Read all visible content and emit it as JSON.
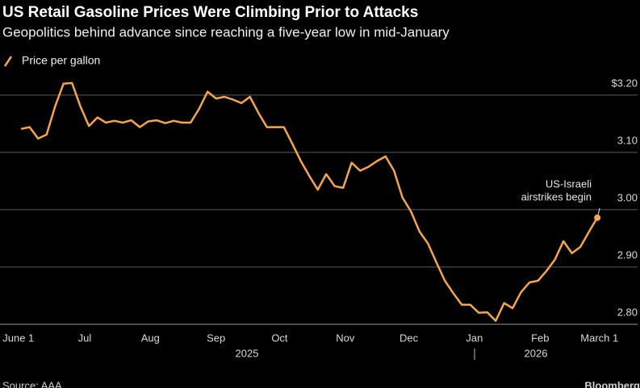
{
  "chart_data": {
    "type": "line",
    "title": "US Retail Gasoline Prices Were Climbing Prior to Attacks",
    "subtitle": "Geopolitics behind advance since reaching a five-year low in mid-January",
    "source": "Source: AAA",
    "brand": "Bloomberg",
    "annotation": [
      "US-Israeli",
      "airstrikes begin"
    ],
    "year_labels": [
      "2025",
      "2026"
    ],
    "x": [
      "2025-06-01",
      "2025-06-05",
      "2025-06-09",
      "2025-06-13",
      "2025-06-17",
      "2025-06-21",
      "2025-06-25",
      "2025-06-29",
      "2025-07-03",
      "2025-07-07",
      "2025-07-11",
      "2025-07-15",
      "2025-07-19",
      "2025-07-23",
      "2025-07-27",
      "2025-07-31",
      "2025-08-04",
      "2025-08-08",
      "2025-08-12",
      "2025-08-16",
      "2025-08-20",
      "2025-08-24",
      "2025-08-28",
      "2025-09-01",
      "2025-09-05",
      "2025-09-09",
      "2025-09-13",
      "2025-09-17",
      "2025-09-21",
      "2025-09-25",
      "2025-09-29",
      "2025-10-03",
      "2025-10-07",
      "2025-10-11",
      "2025-10-15",
      "2025-10-19",
      "2025-10-23",
      "2025-10-27",
      "2025-10-31",
      "2025-11-04",
      "2025-11-08",
      "2025-11-12",
      "2025-11-16",
      "2025-11-20",
      "2025-11-24",
      "2025-11-28",
      "2025-12-02",
      "2025-12-06",
      "2025-12-10",
      "2025-12-14",
      "2025-12-18",
      "2025-12-22",
      "2025-12-26",
      "2025-12-30",
      "2026-01-03",
      "2026-01-07",
      "2026-01-11",
      "2026-01-15",
      "2026-01-19",
      "2026-01-23",
      "2026-01-27",
      "2026-01-31",
      "2026-02-04",
      "2026-02-08",
      "2026-02-12",
      "2026-02-16",
      "2026-02-20",
      "2026-02-24",
      "2026-02-28"
    ],
    "series": [
      {
        "name": "Price per gallon",
        "color": "#f5a54a",
        "values": [
          3.141,
          3.144,
          3.124,
          3.131,
          3.18,
          3.22,
          3.221,
          3.18,
          3.146,
          3.161,
          3.152,
          3.155,
          3.152,
          3.156,
          3.144,
          3.154,
          3.156,
          3.151,
          3.155,
          3.152,
          3.152,
          3.176,
          3.206,
          3.194,
          3.197,
          3.192,
          3.186,
          3.197,
          3.169,
          3.144,
          3.144,
          3.144,
          3.115,
          3.085,
          3.059,
          3.035,
          3.062,
          3.041,
          3.038,
          3.082,
          3.068,
          3.075,
          3.085,
          3.093,
          3.068,
          3.021,
          2.997,
          2.962,
          2.941,
          2.908,
          2.876,
          2.854,
          2.834,
          2.834,
          2.82,
          2.821,
          2.806,
          2.837,
          2.828,
          2.856,
          2.873,
          2.876,
          2.893,
          2.913,
          2.945,
          2.924,
          2.935,
          2.961,
          2.986
        ]
      }
    ],
    "xlim": [
      "2025-05-22",
      "2026-03-19"
    ],
    "xticks": [
      {
        "value": "2025-06-01",
        "label": "June 1"
      },
      {
        "value": "2025-07-01",
        "label": "Jul"
      },
      {
        "value": "2025-08-01",
        "label": "Aug"
      },
      {
        "value": "2025-09-01",
        "label": "Sep"
      },
      {
        "value": "2025-10-01",
        "label": "Oct"
      },
      {
        "value": "2025-11-01",
        "label": "Nov"
      },
      {
        "value": "2025-12-01",
        "label": "Dec"
      },
      {
        "value": "2026-01-01",
        "label": "Jan"
      },
      {
        "value": "2026-02-01",
        "label": "Feb"
      },
      {
        "value": "2026-03-01",
        "label": "March 1"
      }
    ],
    "ylim": [
      2.8,
      3.235
    ],
    "yticks": [
      {
        "value": 3.2,
        "label": "$3.20"
      },
      {
        "value": 3.1,
        "label": "3.10"
      },
      {
        "value": 3.0,
        "label": "3.00"
      },
      {
        "value": 2.9,
        "label": "2.90"
      },
      {
        "value": 2.8,
        "label": "2.80"
      }
    ],
    "grid": true,
    "legend": "top-left"
  }
}
